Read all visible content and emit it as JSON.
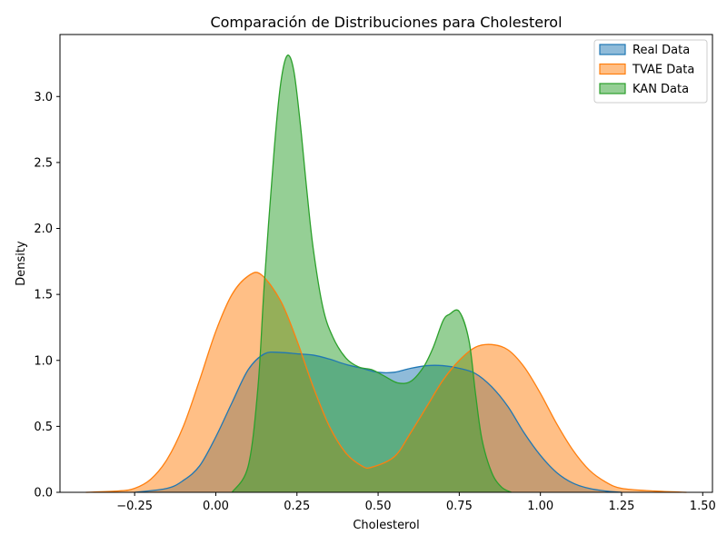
{
  "chart_data": {
    "type": "area",
    "title": "Comparación de Distribuciones para Cholesterol",
    "xlabel": "Cholesterol",
    "ylabel": "Density",
    "xlim": [
      -0.48,
      1.53
    ],
    "ylim": [
      0,
      3.47
    ],
    "xticks": [
      -0.25,
      0.0,
      0.25,
      0.5,
      0.75,
      1.0,
      1.25,
      1.5
    ],
    "xtick_labels": [
      "−0.25",
      "0.00",
      "0.25",
      "0.50",
      "0.75",
      "1.00",
      "1.25",
      "1.50"
    ],
    "yticks": [
      0.0,
      0.5,
      1.0,
      1.5,
      2.0,
      2.5,
      3.0
    ],
    "ytick_labels": [
      "0.0",
      "0.5",
      "1.0",
      "1.5",
      "2.0",
      "2.5",
      "3.0"
    ],
    "grid": false,
    "legend_position": "top-right",
    "series": [
      {
        "name": "Real Data",
        "color": "#1f77b4",
        "x": [
          -0.25,
          -0.15,
          -0.1,
          -0.05,
          0.0,
          0.05,
          0.1,
          0.15,
          0.2,
          0.25,
          0.3,
          0.35,
          0.4,
          0.45,
          0.5,
          0.55,
          0.6,
          0.65,
          0.7,
          0.75,
          0.8,
          0.85,
          0.9,
          0.95,
          1.0,
          1.05,
          1.1,
          1.15,
          1.2,
          1.25
        ],
        "y": [
          0.0,
          0.03,
          0.09,
          0.2,
          0.42,
          0.68,
          0.93,
          1.05,
          1.06,
          1.05,
          1.04,
          1.01,
          0.97,
          0.94,
          0.91,
          0.91,
          0.94,
          0.96,
          0.96,
          0.94,
          0.9,
          0.8,
          0.65,
          0.45,
          0.28,
          0.15,
          0.07,
          0.03,
          0.01,
          0.0
        ]
      },
      {
        "name": "TVAE Data",
        "color": "#ff7f0e",
        "x": [
          -0.4,
          -0.3,
          -0.25,
          -0.2,
          -0.15,
          -0.1,
          -0.05,
          0.0,
          0.05,
          0.1,
          0.14,
          0.2,
          0.25,
          0.3,
          0.35,
          0.4,
          0.45,
          0.48,
          0.55,
          0.6,
          0.65,
          0.7,
          0.75,
          0.8,
          0.85,
          0.9,
          0.95,
          1.0,
          1.05,
          1.1,
          1.15,
          1.2,
          1.25,
          1.35,
          1.45
        ],
        "y": [
          0.0,
          0.01,
          0.03,
          0.1,
          0.25,
          0.5,
          0.85,
          1.22,
          1.5,
          1.64,
          1.65,
          1.45,
          1.15,
          0.8,
          0.5,
          0.3,
          0.2,
          0.19,
          0.27,
          0.45,
          0.65,
          0.85,
          1.0,
          1.1,
          1.12,
          1.08,
          0.95,
          0.75,
          0.52,
          0.32,
          0.17,
          0.08,
          0.03,
          0.01,
          0.0
        ]
      },
      {
        "name": "KAN Data",
        "color": "#2ca02c",
        "x": [
          0.05,
          0.1,
          0.13,
          0.15,
          0.18,
          0.2,
          0.22,
          0.24,
          0.26,
          0.28,
          0.3,
          0.33,
          0.36,
          0.4,
          0.44,
          0.48,
          0.52,
          0.56,
          0.6,
          0.64,
          0.67,
          0.7,
          0.72,
          0.75,
          0.78,
          0.8,
          0.82,
          0.85,
          0.88,
          0.91
        ],
        "y": [
          0.0,
          0.2,
          0.8,
          1.6,
          2.6,
          3.1,
          3.31,
          3.2,
          2.8,
          2.3,
          1.85,
          1.4,
          1.18,
          1.02,
          0.95,
          0.93,
          0.88,
          0.83,
          0.84,
          0.95,
          1.1,
          1.3,
          1.35,
          1.37,
          1.15,
          0.75,
          0.4,
          0.15,
          0.04,
          0.0
        ]
      }
    ]
  }
}
